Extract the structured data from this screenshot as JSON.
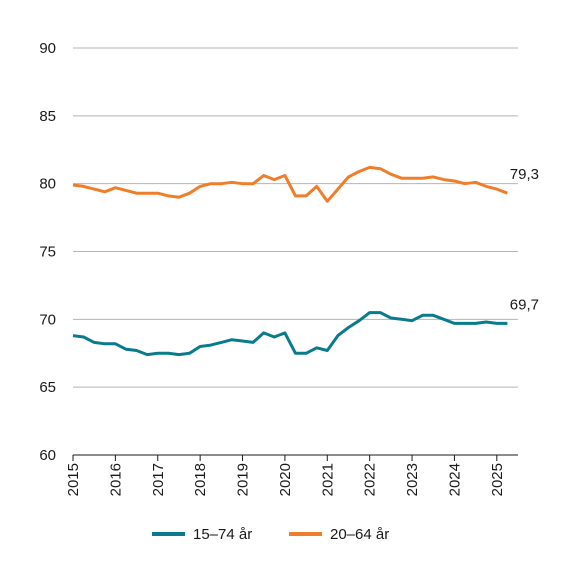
{
  "chart_data": {
    "type": "line",
    "ylim": [
      60,
      90
    ],
    "yticks": [
      "60",
      "65",
      "70",
      "75",
      "80",
      "85",
      "90"
    ],
    "ytick_values": [
      60,
      65,
      70,
      75,
      80,
      85,
      90
    ],
    "xlim": [
      2015,
      2025.5
    ],
    "xticks": [
      "2015",
      "2016",
      "2017",
      "2018",
      "2019",
      "2020",
      "2021",
      "2022",
      "2023",
      "2024",
      "2025"
    ],
    "xtick_values": [
      2015,
      2016,
      2017,
      2018,
      2019,
      2020,
      2021,
      2022,
      2023,
      2024,
      2025
    ],
    "grid": "horizontal",
    "legend_placement": "bottom-center",
    "series": [
      {
        "name": "15–74 år",
        "color": "#0a7b8c",
        "end_label": "69,7",
        "x": [
          2015.0,
          2015.25,
          2015.5,
          2015.75,
          2016.0,
          2016.25,
          2016.5,
          2016.75,
          2017.0,
          2017.25,
          2017.5,
          2017.75,
          2018.0,
          2018.25,
          2018.5,
          2018.75,
          2019.0,
          2019.25,
          2019.5,
          2019.75,
          2020.0,
          2020.25,
          2020.5,
          2020.75,
          2021.0,
          2021.25,
          2021.5,
          2021.75,
          2022.0,
          2022.25,
          2022.5,
          2022.75,
          2023.0,
          2023.25,
          2023.5,
          2023.75,
          2024.0,
          2024.25,
          2024.5,
          2024.75,
          2025.0,
          2025.25
        ],
        "y": [
          68.8,
          68.7,
          68.3,
          68.2,
          68.2,
          67.8,
          67.7,
          67.4,
          67.5,
          67.5,
          67.4,
          67.5,
          68.0,
          68.1,
          68.3,
          68.5,
          68.4,
          68.3,
          69.0,
          68.7,
          69.0,
          67.5,
          67.5,
          67.9,
          67.7,
          68.8,
          69.4,
          69.9,
          70.5,
          70.5,
          70.1,
          70.0,
          69.9,
          70.3,
          70.3,
          70.0,
          69.7,
          69.7,
          69.7,
          69.8,
          69.7,
          69.7
        ]
      },
      {
        "name": "20–64 år",
        "color": "#f07d2a",
        "end_label": "79,3",
        "x": [
          2015.0,
          2015.25,
          2015.5,
          2015.75,
          2016.0,
          2016.25,
          2016.5,
          2016.75,
          2017.0,
          2017.25,
          2017.5,
          2017.75,
          2018.0,
          2018.25,
          2018.5,
          2018.75,
          2019.0,
          2019.25,
          2019.5,
          2019.75,
          2020.0,
          2020.25,
          2020.5,
          2020.75,
          2021.0,
          2021.25,
          2021.5,
          2021.75,
          2022.0,
          2022.25,
          2022.5,
          2022.75,
          2023.0,
          2023.25,
          2023.5,
          2023.75,
          2024.0,
          2024.25,
          2024.5,
          2024.75,
          2025.0,
          2025.25
        ],
        "y": [
          79.9,
          79.8,
          79.6,
          79.4,
          79.7,
          79.5,
          79.3,
          79.3,
          79.3,
          79.1,
          79.0,
          79.3,
          79.8,
          80.0,
          80.0,
          80.1,
          80.0,
          80.0,
          80.6,
          80.3,
          80.6,
          79.1,
          79.1,
          79.8,
          78.7,
          79.6,
          80.5,
          80.9,
          81.2,
          81.1,
          80.7,
          80.4,
          80.4,
          80.4,
          80.5,
          80.3,
          80.2,
          80.0,
          80.1,
          79.8,
          79.6,
          79.3
        ]
      }
    ]
  }
}
